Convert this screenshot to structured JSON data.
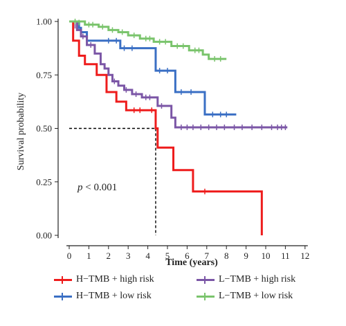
{
  "chart_data": {
    "type": "line",
    "subtype": "kaplan-meier step",
    "xlabel": "Time (years)",
    "ylabel": "Survival probability",
    "xlim": [
      0,
      12.5
    ],
    "ylim": [
      0,
      1.0
    ],
    "xticks": [
      0,
      1,
      2,
      3,
      4,
      5,
      6,
      7,
      8,
      9,
      10,
      11,
      12
    ],
    "yticks": [
      0.0,
      0.25,
      0.5,
      0.75,
      1.0
    ],
    "ytick_labels": [
      "0.00",
      "0.25",
      "0.50",
      "0.75",
      "1.00"
    ],
    "annotation": {
      "text_p": "p",
      "text_rest": " < 0.001",
      "x": 1.0,
      "y": 0.22
    },
    "median_line": {
      "y": 0.5,
      "x": 4.4
    },
    "grid": false,
    "legend_position": "bottom",
    "series": [
      {
        "name": "H−TMB + high risk",
        "color": "#ee1c1c",
        "steps": [
          [
            0,
            1.0
          ],
          [
            0.2,
            0.91
          ],
          [
            0.5,
            0.84
          ],
          [
            0.8,
            0.8
          ],
          [
            1.4,
            0.75
          ],
          [
            1.9,
            0.67
          ],
          [
            2.4,
            0.625
          ],
          [
            2.9,
            0.585
          ],
          [
            4.4,
            0.5
          ],
          [
            4.5,
            0.41
          ],
          [
            5.3,
            0.305
          ],
          [
            6.3,
            0.205
          ],
          [
            9.8,
            0.0
          ],
          [
            9.8,
            0.0
          ]
        ],
        "censored": [
          [
            3.3,
            0.585
          ],
          [
            3.6,
            0.585
          ],
          [
            4.2,
            0.585
          ],
          [
            6.9,
            0.205
          ]
        ]
      },
      {
        "name": "H−TMB + low risk",
        "color": "#3a6fc4",
        "steps": [
          [
            0,
            1.0
          ],
          [
            0.5,
            0.97
          ],
          [
            0.6,
            0.95
          ],
          [
            0.9,
            0.91
          ],
          [
            2.6,
            0.875
          ],
          [
            4.4,
            0.77
          ],
          [
            5.4,
            0.67
          ],
          [
            6.9,
            0.565
          ],
          [
            8.5,
            0.565
          ]
        ],
        "censored": [
          [
            2.0,
            0.91
          ],
          [
            2.4,
            0.91
          ],
          [
            2.8,
            0.875
          ],
          [
            3.2,
            0.875
          ],
          [
            4.6,
            0.77
          ],
          [
            5.0,
            0.77
          ],
          [
            5.7,
            0.67
          ],
          [
            6.2,
            0.67
          ],
          [
            7.3,
            0.565
          ],
          [
            7.7,
            0.565
          ],
          [
            8.0,
            0.565
          ]
        ]
      },
      {
        "name": "L−TMB + high risk",
        "color": "#7b56a6",
        "steps": [
          [
            0,
            1.0
          ],
          [
            0.4,
            0.96
          ],
          [
            0.6,
            0.93
          ],
          [
            0.9,
            0.89
          ],
          [
            1.3,
            0.85
          ],
          [
            1.6,
            0.8
          ],
          [
            1.8,
            0.78
          ],
          [
            2.0,
            0.75
          ],
          [
            2.2,
            0.72
          ],
          [
            2.5,
            0.7
          ],
          [
            2.8,
            0.68
          ],
          [
            3.2,
            0.66
          ],
          [
            3.7,
            0.645
          ],
          [
            4.5,
            0.605
          ],
          [
            5.2,
            0.55
          ],
          [
            5.4,
            0.505
          ],
          [
            11.1,
            0.505
          ]
        ],
        "censored": [
          [
            0.3,
            0.98
          ],
          [
            0.7,
            0.93
          ],
          [
            1.1,
            0.89
          ],
          [
            2.3,
            0.72
          ],
          [
            2.9,
            0.68
          ],
          [
            3.4,
            0.66
          ],
          [
            3.9,
            0.645
          ],
          [
            4.1,
            0.645
          ],
          [
            4.7,
            0.605
          ],
          [
            5.7,
            0.505
          ],
          [
            6.0,
            0.505
          ],
          [
            6.3,
            0.505
          ],
          [
            6.7,
            0.505
          ],
          [
            7.1,
            0.505
          ],
          [
            7.5,
            0.505
          ],
          [
            7.9,
            0.505
          ],
          [
            8.4,
            0.505
          ],
          [
            8.8,
            0.505
          ],
          [
            9.3,
            0.505
          ],
          [
            9.8,
            0.505
          ],
          [
            10.3,
            0.505
          ],
          [
            10.6,
            0.505
          ],
          [
            10.8,
            0.505
          ],
          [
            11.0,
            0.505
          ]
        ]
      },
      {
        "name": "L−TMB + low risk",
        "color": "#7ac46c",
        "steps": [
          [
            0,
            1.0
          ],
          [
            0.8,
            0.985
          ],
          [
            1.5,
            0.975
          ],
          [
            2.0,
            0.96
          ],
          [
            2.5,
            0.95
          ],
          [
            3.0,
            0.935
          ],
          [
            3.6,
            0.92
          ],
          [
            4.3,
            0.905
          ],
          [
            5.2,
            0.885
          ],
          [
            6.1,
            0.865
          ],
          [
            6.8,
            0.845
          ],
          [
            7.1,
            0.825
          ],
          [
            8.0,
            0.825
          ]
        ],
        "censored": [
          [
            0.3,
            1.0
          ],
          [
            0.5,
            0.995
          ],
          [
            1.0,
            0.985
          ],
          [
            1.2,
            0.985
          ],
          [
            1.7,
            0.975
          ],
          [
            2.2,
            0.96
          ],
          [
            2.7,
            0.95
          ],
          [
            3.3,
            0.935
          ],
          [
            3.9,
            0.92
          ],
          [
            4.1,
            0.92
          ],
          [
            4.6,
            0.905
          ],
          [
            4.9,
            0.905
          ],
          [
            5.5,
            0.885
          ],
          [
            5.8,
            0.885
          ],
          [
            6.4,
            0.865
          ],
          [
            6.6,
            0.865
          ],
          [
            7.4,
            0.825
          ],
          [
            7.7,
            0.825
          ]
        ]
      }
    ]
  }
}
